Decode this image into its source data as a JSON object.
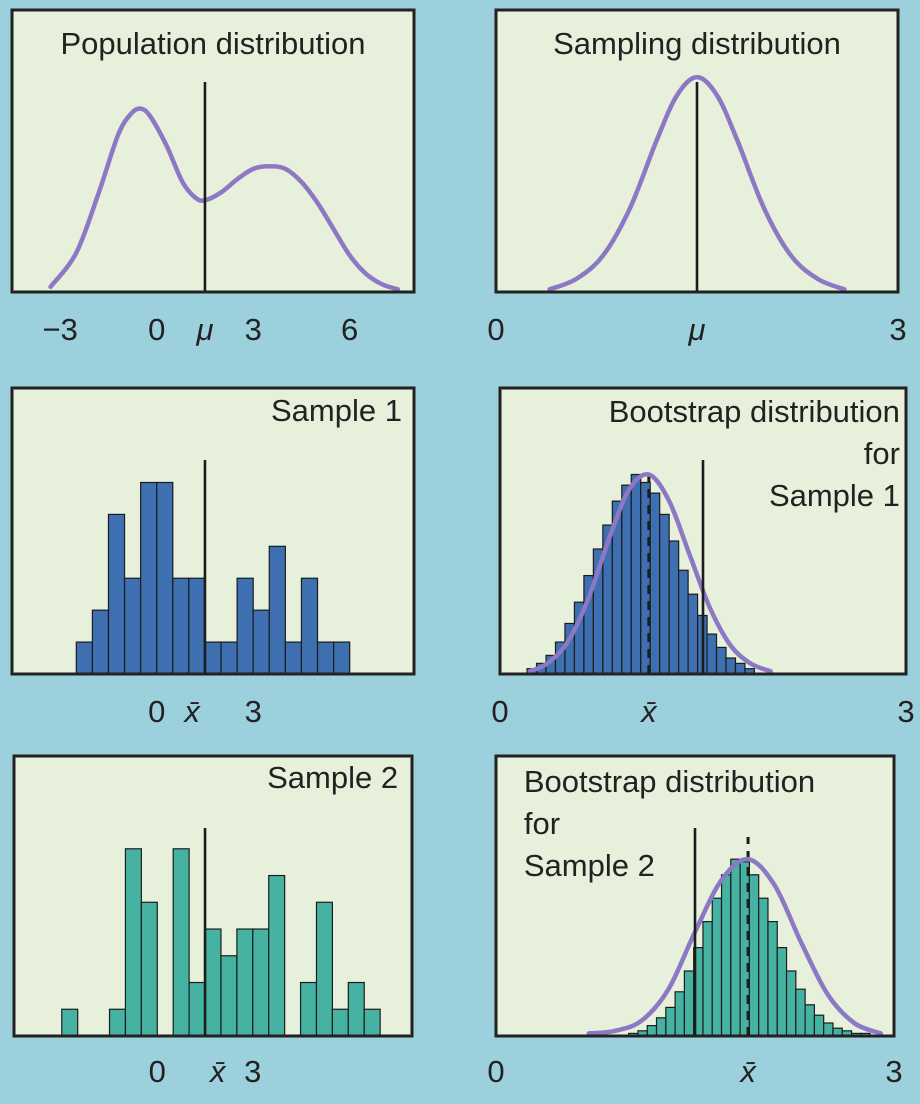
{
  "colors": {
    "background": "#9cd0dc",
    "panel": "#e6f0da",
    "frame": "#222222",
    "curve": "#8c78c4",
    "sample1_bars": "#3e6fb0",
    "sample2_bars": "#46b2a2"
  },
  "chart_data": [
    {
      "id": "population",
      "type": "line",
      "title": "Population distribution",
      "xlim": [
        -4.5,
        8.0
      ],
      "ylim": [
        0,
        1
      ],
      "ticks": [
        {
          "value": -3,
          "label": "−3"
        },
        {
          "value": 0,
          "label": "0"
        },
        {
          "value": 1.5,
          "label": "μ",
          "italic": true
        },
        {
          "value": 3,
          "label": "3"
        },
        {
          "value": 6,
          "label": "6"
        }
      ],
      "reference_line": {
        "value": 1.5,
        "label": "μ",
        "style": "solid"
      },
      "curve": {
        "x": [
          -3.3,
          -2.5,
          -1.8,
          -1.2,
          -0.8,
          -0.5,
          -0.2,
          0.3,
          0.8,
          1.2,
          1.5,
          2.0,
          2.5,
          3.0,
          3.5,
          4.0,
          4.5,
          5.0,
          5.5,
          6.0,
          6.5,
          7.0,
          7.5
        ],
        "y": [
          0.02,
          0.15,
          0.38,
          0.6,
          0.68,
          0.7,
          0.67,
          0.56,
          0.42,
          0.36,
          0.35,
          0.38,
          0.43,
          0.47,
          0.48,
          0.47,
          0.42,
          0.34,
          0.24,
          0.14,
          0.07,
          0.03,
          0.01
        ]
      }
    },
    {
      "id": "sampling",
      "type": "line",
      "title": "Sampling distribution",
      "xlim": [
        0,
        3
      ],
      "ylim": [
        0,
        1
      ],
      "ticks": [
        {
          "value": 0,
          "label": "0"
        },
        {
          "value": 1.5,
          "label": "μ",
          "italic": true
        },
        {
          "value": 3,
          "label": "3"
        }
      ],
      "reference_line": {
        "value": 1.5,
        "label": "μ",
        "style": "solid"
      },
      "curve": {
        "x": [
          0.4,
          0.6,
          0.8,
          1.0,
          1.2,
          1.35,
          1.5,
          1.65,
          1.8,
          2.0,
          2.2,
          2.4,
          2.6
        ],
        "y": [
          0.01,
          0.05,
          0.14,
          0.32,
          0.58,
          0.75,
          0.82,
          0.75,
          0.58,
          0.32,
          0.14,
          0.05,
          0.01
        ]
      }
    },
    {
      "id": "sample1",
      "type": "bar",
      "title": "Sample 1",
      "xlim": [
        -4.5,
        8.0
      ],
      "ylim": [
        0,
        1
      ],
      "ticks": [
        {
          "value": 0,
          "label": "0"
        },
        {
          "value": 1.1,
          "label": "x̄",
          "italic": true
        },
        {
          "value": 3,
          "label": "3"
        }
      ],
      "reference_line": {
        "value": 1.5,
        "style": "solid"
      },
      "bin_start": -2.5,
      "bin_width": 0.5,
      "counts": [
        1,
        2,
        5,
        3,
        6,
        6,
        3,
        3,
        1,
        1,
        3,
        2,
        4,
        1,
        3,
        1,
        1
      ]
    },
    {
      "id": "boot1",
      "type": "bar",
      "title": "Bootstrap distribution\nfor\nSample 1",
      "xlim": [
        0,
        3
      ],
      "ylim": [
        0,
        1
      ],
      "ticks": [
        {
          "value": 0,
          "label": "0"
        },
        {
          "value": 1.1,
          "label": "x̄",
          "italic": true
        },
        {
          "value": 3,
          "label": "3"
        }
      ],
      "reference_line": {
        "value": 1.5,
        "style": "solid"
      },
      "mean_line": {
        "value": 1.1,
        "style": "dashed"
      },
      "bin_start": 0.2,
      "bin_width": 0.07,
      "counts": [
        0.02,
        0.04,
        0.07,
        0.12,
        0.19,
        0.27,
        0.37,
        0.47,
        0.56,
        0.65,
        0.71,
        0.75,
        0.72,
        0.68,
        0.6,
        0.5,
        0.39,
        0.3,
        0.22,
        0.15,
        0.1,
        0.06,
        0.04,
        0.02
      ],
      "curve": {
        "x": [
          0.22,
          0.35,
          0.5,
          0.65,
          0.8,
          0.95,
          1.1,
          1.25,
          1.4,
          1.55,
          1.7,
          1.85,
          2.0
        ],
        "y": [
          0.01,
          0.04,
          0.12,
          0.28,
          0.5,
          0.69,
          0.75,
          0.65,
          0.45,
          0.25,
          0.11,
          0.04,
          0.01
        ]
      }
    },
    {
      "id": "sample2",
      "type": "bar",
      "title": "Sample 2",
      "xlim": [
        -4.5,
        8.0
      ],
      "ylim": [
        0,
        1
      ],
      "ticks": [
        {
          "value": 0,
          "label": "0"
        },
        {
          "value": 1.9,
          "label": "x̄",
          "italic": true
        },
        {
          "value": 3,
          "label": "3"
        }
      ],
      "reference_line": {
        "value": 1.5,
        "style": "solid"
      },
      "bin_start": -3.0,
      "bin_width": 0.5,
      "counts": [
        1,
        0,
        0,
        1,
        7,
        5,
        0,
        7,
        2,
        4,
        3,
        4,
        4,
        6,
        0,
        2,
        5,
        1,
        2,
        1
      ]
    },
    {
      "id": "boot2",
      "type": "bar",
      "title": "Bootstrap distribution\nfor\nSample 2",
      "xlim": [
        0,
        3
      ],
      "ylim": [
        0,
        1
      ],
      "ticks": [
        {
          "value": 0,
          "label": "0"
        },
        {
          "value": 1.9,
          "label": "x̄",
          "italic": true
        },
        {
          "value": 3,
          "label": "3"
        }
      ],
      "reference_line": {
        "value": 1.5,
        "style": "solid"
      },
      "mean_line": {
        "value": 1.9,
        "style": "dashed"
      },
      "bin_start": 1.0,
      "bin_width": 0.07,
      "counts": [
        0.01,
        0.02,
        0.04,
        0.07,
        0.11,
        0.17,
        0.25,
        0.34,
        0.44,
        0.53,
        0.62,
        0.68,
        0.67,
        0.62,
        0.53,
        0.44,
        0.34,
        0.25,
        0.18,
        0.12,
        0.08,
        0.05,
        0.03,
        0.02,
        0.01,
        0.01
      ],
      "curve": {
        "x": [
          0.7,
          0.9,
          1.1,
          1.3,
          1.5,
          1.7,
          1.9,
          2.1,
          2.3,
          2.5,
          2.7,
          2.9
        ],
        "y": [
          0.01,
          0.02,
          0.06,
          0.18,
          0.4,
          0.6,
          0.68,
          0.58,
          0.36,
          0.16,
          0.05,
          0.01
        ]
      }
    }
  ]
}
